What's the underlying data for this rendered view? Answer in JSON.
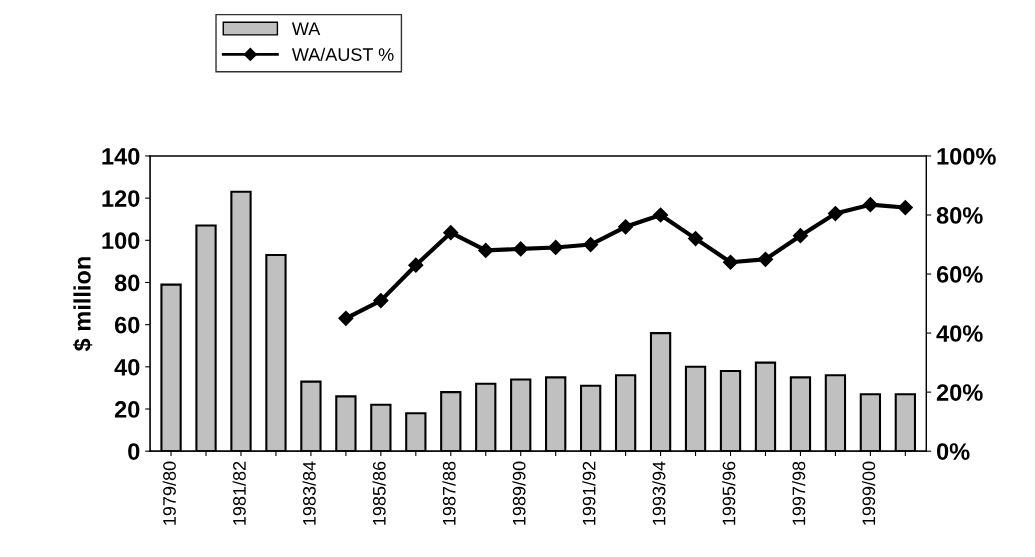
{
  "chart_data": {
    "type": "bar",
    "ylabel": "$ million",
    "categories": [
      "1979/80",
      null,
      "1981/82",
      null,
      "1983/84",
      null,
      "1985/86",
      null,
      "1987/88",
      null,
      "1989/90",
      null,
      "1991/92",
      null,
      "1993/94",
      null,
      "1995/96",
      null,
      "1997/98",
      null,
      "1999/00",
      null
    ],
    "series": [
      {
        "name": "WA",
        "color": "#c0c0c0",
        "values": [
          79,
          107,
          123,
          93,
          33,
          26,
          22,
          18,
          28,
          32,
          34,
          35,
          31,
          36,
          56,
          40,
          38,
          42,
          35,
          36,
          27,
          27
        ]
      },
      {
        "name": "WA/AUST %",
        "type": "line",
        "axis": "y2",
        "color": "#000000",
        "marker": "diamond",
        "values": [
          null,
          null,
          null,
          null,
          null,
          45,
          51,
          63,
          74,
          68,
          68.5,
          69,
          70,
          76,
          80,
          72,
          64,
          65,
          73,
          80.5,
          83.5,
          82.5
        ]
      }
    ],
    "ylim": [
      0,
      140
    ],
    "yticks": [
      0,
      20,
      40,
      60,
      80,
      100,
      120,
      140
    ],
    "y2lim": [
      0,
      100
    ],
    "y2ticks": [
      {
        "value": 0,
        "label": "0%"
      },
      {
        "value": 20,
        "label": "20%"
      },
      {
        "value": 40,
        "label": "40%"
      },
      {
        "value": 60,
        "label": "60%"
      },
      {
        "value": 80,
        "label": "80%"
      },
      {
        "value": 100,
        "label": "100%"
      }
    ],
    "legend": "top left",
    "grid": false
  }
}
